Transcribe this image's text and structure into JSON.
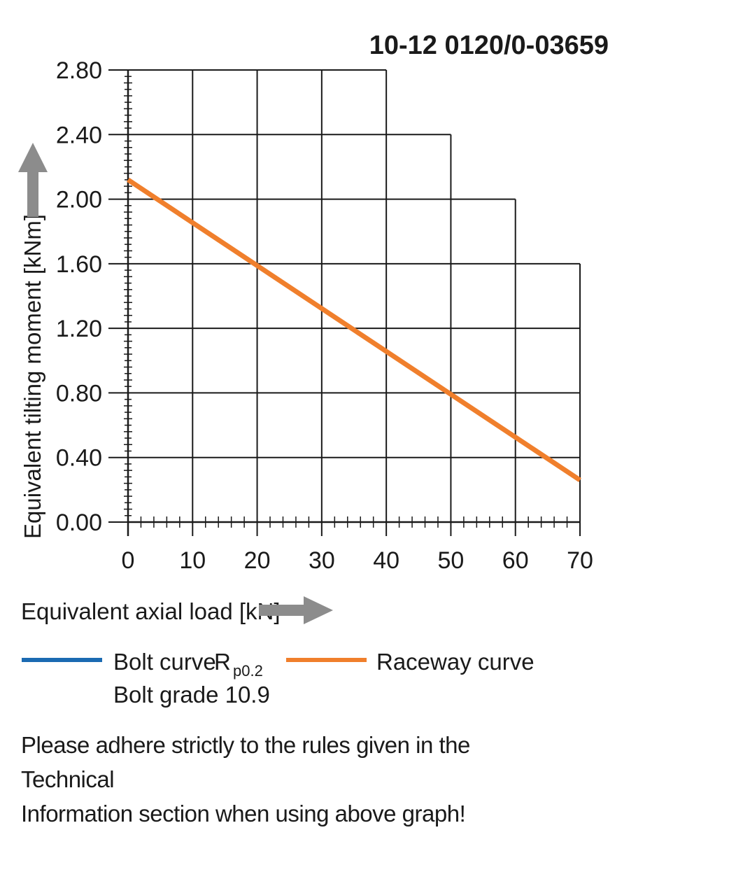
{
  "chart_data": {
    "type": "line",
    "code": "10-12 0120/0-03659",
    "xlabel": "Equivalent axial load [kN]",
    "ylabel": "Equivalent tilting moment [kNm]",
    "xlim": [
      0,
      70
    ],
    "ylim": [
      0,
      2.8
    ],
    "x_ticks": [
      "0",
      "10",
      "20",
      "30",
      "40",
      "50",
      "60",
      "70"
    ],
    "y_ticks": [
      "0.00",
      "0.40",
      "0.80",
      "1.20",
      "1.60",
      "2.00",
      "2.40",
      "2.80"
    ],
    "grid": true,
    "grid_extent": [
      {
        "x": [
          0,
          40
        ],
        "y_max": 2.8
      },
      {
        "x": [
          40,
          50
        ],
        "y_max": 2.4
      },
      {
        "x": [
          50,
          60
        ],
        "y_max": 2.0
      },
      {
        "x": [
          60,
          70
        ],
        "y_max": 1.6
      }
    ],
    "series": [
      {
        "name": "Raceway curve",
        "color": "#F07F2C",
        "x": [
          0,
          70
        ],
        "y": [
          2.12,
          0.26
        ]
      }
    ],
    "legend": [
      {
        "label": "Bolt curve",
        "symbol": "R",
        "subscript": "p0.2",
        "sub_label": "Bolt grade 10.9",
        "color": "#1B6AB2"
      },
      {
        "label": "Raceway curve",
        "color": "#F07F2C"
      }
    ],
    "note_line1": "Please adhere strictly to the rules given in the Technical",
    "note_line2": "Information section when using above graph!"
  }
}
